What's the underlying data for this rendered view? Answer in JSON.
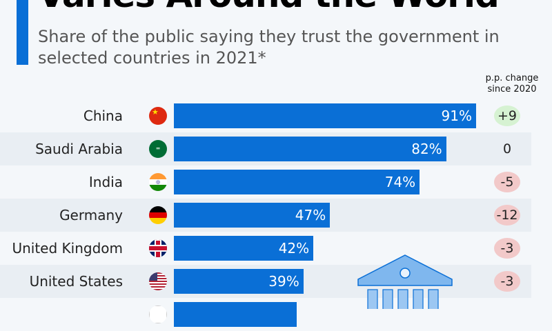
{
  "chart_data": {
    "type": "bar",
    "title": "Varies Around the World",
    "subtitle": "Share of the public saying they trust the government in selected countries in 2021*",
    "change_header": "p.p. change since 2020",
    "unit": "%",
    "xlim": [
      0,
      100
    ],
    "colors": {
      "bar": "#0a6fd6",
      "positive": "#d6f2d2",
      "negative": "#f2c9c9"
    },
    "categories": [
      "China",
      "Saudi Arabia",
      "India",
      "Germany",
      "United Kingdom",
      "United States",
      ""
    ],
    "values": [
      91,
      82,
      74,
      47,
      42,
      39,
      37
    ],
    "value_labels": [
      "91%",
      "82%",
      "74%",
      "47%",
      "42%",
      "39%",
      ""
    ],
    "changes": [
      "+9",
      "0",
      "-5",
      "-12",
      "-3",
      "-3",
      ""
    ],
    "change_sign": [
      1,
      0,
      -1,
      -1,
      -1,
      -1,
      0
    ]
  }
}
